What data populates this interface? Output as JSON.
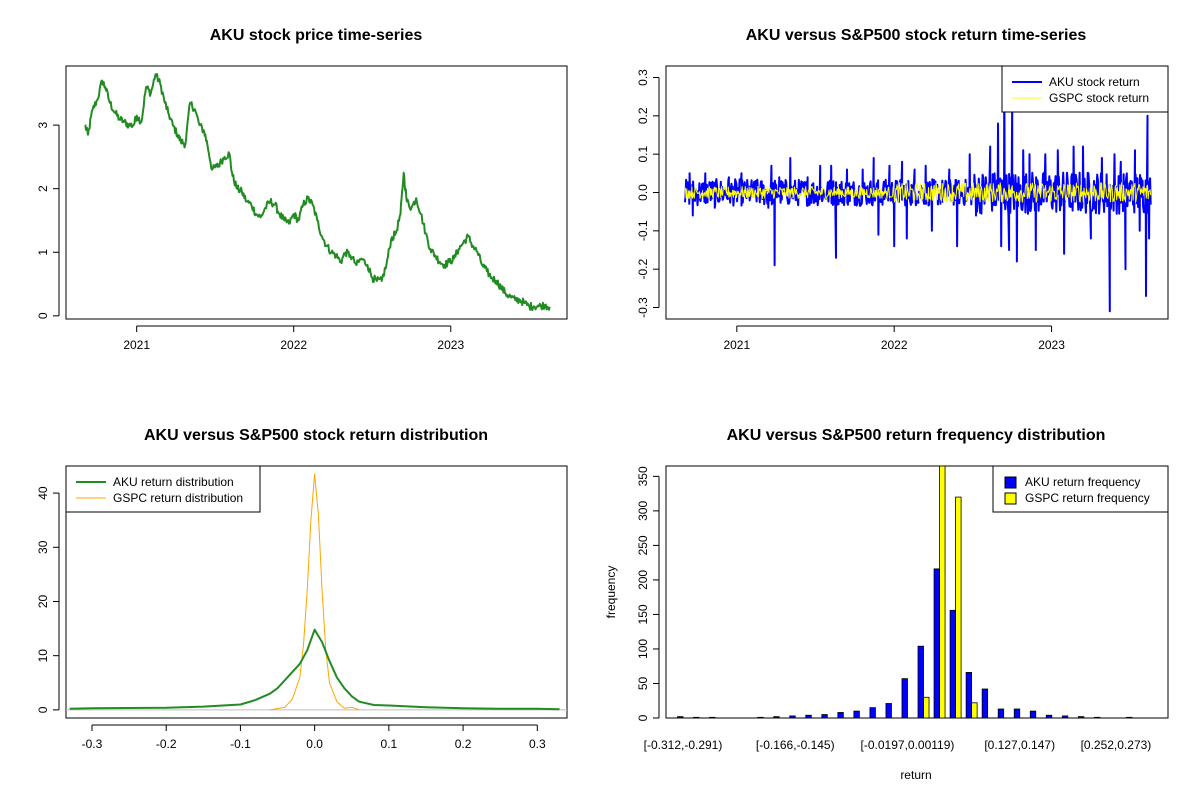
{
  "colors": {
    "green": "#228B22",
    "blue": "#0000FF",
    "yellow": "#FFFF00",
    "orange": "#FFA500",
    "black": "#000000",
    "gray": "#BEBEBE"
  },
  "chart_data": [
    {
      "id": "price",
      "type": "line",
      "title": "AKU stock price time-series",
      "xlabel": "",
      "ylabel": "",
      "xlim": [
        2020.55,
        2023.74
      ],
      "ylim": [
        -0.05,
        3.93
      ],
      "x_ticks": [
        {
          "value": 2021.0,
          "label": "2021"
        },
        {
          "value": 2022.0,
          "label": "2022"
        },
        {
          "value": 2023.0,
          "label": "2023"
        }
      ],
      "y_ticks": [
        {
          "value": 0,
          "label": "0"
        },
        {
          "value": 1,
          "label": "1"
        },
        {
          "value": 2,
          "label": "2"
        },
        {
          "value": 3,
          "label": "3"
        }
      ],
      "series": [
        {
          "name": "AKU stock price",
          "color": "#228B22",
          "x": [
            2020.67,
            2020.69,
            2020.72,
            2020.75,
            2020.78,
            2020.8,
            2020.83,
            2020.86,
            2020.89,
            2020.92,
            2020.95,
            2020.98,
            2021.0,
            2021.03,
            2021.06,
            2021.09,
            2021.12,
            2021.15,
            2021.18,
            2021.2,
            2021.23,
            2021.26,
            2021.28,
            2021.31,
            2021.34,
            2021.37,
            2021.4,
            2021.43,
            2021.45,
            2021.48,
            2021.51,
            2021.53,
            2021.56,
            2021.59,
            2021.61,
            2021.64,
            2021.67,
            2021.7,
            2021.73,
            2021.76,
            2021.79,
            2021.82,
            2021.85,
            2021.88,
            2021.91,
            2021.94,
            2021.97,
            2022.0,
            2022.03,
            2022.06,
            2022.09,
            2022.12,
            2022.15,
            2022.18,
            2022.21,
            2022.24,
            2022.27,
            2022.3,
            2022.33,
            2022.36,
            2022.4,
            2022.43,
            2022.47,
            2022.5,
            2022.53,
            2022.56,
            2022.59,
            2022.62,
            2022.65,
            2022.68,
            2022.7,
            2022.72,
            2022.75,
            2022.78,
            2022.81,
            2022.84,
            2022.87,
            2022.9,
            2022.93,
            2022.96,
            2022.99,
            2023.02,
            2023.05,
            2023.08,
            2023.11,
            2023.14,
            2023.17,
            2023.2,
            2023.23,
            2023.26,
            2023.29,
            2023.32,
            2023.35,
            2023.38,
            2023.41,
            2023.44,
            2023.47,
            2023.5,
            2023.53,
            2023.56,
            2023.6,
            2023.63
          ],
          "values": [
            3.0,
            2.85,
            3.25,
            3.4,
            3.7,
            3.6,
            3.35,
            3.2,
            3.1,
            3.05,
            3.0,
            3.0,
            3.15,
            3.05,
            3.6,
            3.5,
            3.8,
            3.65,
            3.35,
            3.2,
            3.0,
            2.85,
            2.75,
            2.7,
            3.35,
            3.25,
            3.0,
            2.9,
            2.7,
            2.3,
            2.35,
            2.4,
            2.5,
            2.55,
            2.2,
            2.0,
            1.95,
            1.8,
            1.75,
            1.6,
            1.55,
            1.7,
            1.8,
            1.75,
            1.6,
            1.5,
            1.45,
            1.6,
            1.5,
            1.75,
            1.85,
            1.75,
            1.5,
            1.25,
            1.1,
            1.0,
            0.95,
            0.85,
            1.0,
            0.95,
            0.8,
            0.9,
            0.8,
            0.6,
            0.55,
            0.55,
            0.8,
            1.2,
            1.3,
            1.6,
            2.25,
            1.8,
            1.7,
            1.85,
            1.6,
            1.3,
            1.05,
            0.95,
            0.85,
            0.8,
            0.85,
            0.9,
            1.05,
            1.15,
            1.25,
            1.1,
            1.0,
            0.8,
            0.7,
            0.6,
            0.55,
            0.45,
            0.35,
            0.3,
            0.25,
            0.25,
            0.2,
            0.15,
            0.15,
            0.15,
            0.17,
            0.14
          ]
        }
      ]
    },
    {
      "id": "returns_ts",
      "type": "line",
      "title": "AKU versus S&P500 stock return time-series",
      "xlabel": "",
      "ylabel": "",
      "xlim": [
        2020.55,
        2023.74
      ],
      "ylim": [
        -0.33,
        0.33
      ],
      "x_ticks": [
        {
          "value": 2021.0,
          "label": "2021"
        },
        {
          "value": 2022.0,
          "label": "2022"
        },
        {
          "value": 2023.0,
          "label": "2023"
        }
      ],
      "y_ticks": [
        {
          "value": -0.3,
          "label": "-0.3"
        },
        {
          "value": -0.2,
          "label": "-0.2"
        },
        {
          "value": -0.1,
          "label": "-0.1"
        },
        {
          "value": 0.0,
          "label": "0.0"
        },
        {
          "value": 0.1,
          "label": "0.1"
        },
        {
          "value": 0.2,
          "label": "0.2"
        },
        {
          "value": 0.3,
          "label": "0.3"
        }
      ],
      "x_range": [
        2020.67,
        2023.63
      ],
      "series": [
        {
          "name": "AKU stock return",
          "color": "#0000FF",
          "width": 2,
          "noise_amplitude": 0.035,
          "spikes": [
            [
              2020.7,
              0.05
            ],
            [
              2020.72,
              -0.06
            ],
            [
              2020.8,
              0.05
            ],
            [
              2020.86,
              -0.04
            ],
            [
              2020.95,
              0.04
            ],
            [
              2021.03,
              0.05
            ],
            [
              2021.12,
              0.03
            ],
            [
              2021.2,
              -0.04
            ],
            [
              2021.22,
              0.07
            ],
            [
              2021.24,
              -0.19
            ],
            [
              2021.27,
              0.04
            ],
            [
              2021.34,
              0.09
            ],
            [
              2021.45,
              0.04
            ],
            [
              2021.53,
              0.07
            ],
            [
              2021.6,
              0.07
            ],
            [
              2021.63,
              -0.17
            ],
            [
              2021.7,
              0.06
            ],
            [
              2021.8,
              0.06
            ],
            [
              2021.87,
              0.09
            ],
            [
              2021.9,
              -0.11
            ],
            [
              2021.97,
              0.07
            ],
            [
              2022.0,
              -0.14
            ],
            [
              2022.05,
              0.08
            ],
            [
              2022.08,
              -0.12
            ],
            [
              2022.13,
              0.06
            ],
            [
              2022.2,
              0.07
            ],
            [
              2022.24,
              -0.1
            ],
            [
              2022.35,
              0.06
            ],
            [
              2022.4,
              -0.14
            ],
            [
              2022.48,
              0.1
            ],
            [
              2022.52,
              -0.06
            ],
            [
              2022.61,
              0.12
            ],
            [
              2022.66,
              0.18
            ],
            [
              2022.68,
              -0.14
            ],
            [
              2022.7,
              0.32
            ],
            [
              2022.73,
              -0.15
            ],
            [
              2022.75,
              0.23
            ],
            [
              2022.78,
              -0.18
            ],
            [
              2022.82,
              0.11
            ],
            [
              2022.86,
              0.1
            ],
            [
              2022.9,
              -0.15
            ],
            [
              2022.96,
              0.1
            ],
            [
              2023.04,
              0.11
            ],
            [
              2023.08,
              -0.16
            ],
            [
              2023.14,
              0.12
            ],
            [
              2023.2,
              0.12
            ],
            [
              2023.25,
              -0.12
            ],
            [
              2023.32,
              0.09
            ],
            [
              2023.37,
              -0.31
            ],
            [
              2023.4,
              0.1
            ],
            [
              2023.44,
              0.08
            ],
            [
              2023.47,
              -0.2
            ],
            [
              2023.53,
              0.11
            ],
            [
              2023.56,
              -0.1
            ],
            [
              2023.6,
              -0.27
            ],
            [
              2023.61,
              0.2
            ],
            [
              2023.62,
              -0.12
            ]
          ]
        },
        {
          "name": "GSPC stock return",
          "color": "#FFFF00",
          "width": 1,
          "noise_amplitude": 0.02
        }
      ],
      "legend": {
        "position": "top-right",
        "entries": [
          {
            "label": "AKU stock return",
            "color": "#0000FF"
          },
          {
            "label": "GSPC stock return",
            "color": "#FFFF00"
          }
        ]
      }
    },
    {
      "id": "density",
      "type": "line",
      "title": "AKU versus S&P500 stock return distribution",
      "xlabel": "",
      "ylabel": "",
      "xlim": [
        -0.335,
        0.34
      ],
      "ylim": [
        -1.5,
        45.0
      ],
      "x_ticks": [
        {
          "value": -0.3,
          "label": "-0.3"
        },
        {
          "value": -0.2,
          "label": "-0.2"
        },
        {
          "value": -0.1,
          "label": "-0.1"
        },
        {
          "value": 0.0,
          "label": "0.0"
        },
        {
          "value": 0.1,
          "label": "0.1"
        },
        {
          "value": 0.2,
          "label": "0.2"
        },
        {
          "value": 0.3,
          "label": "0.3"
        }
      ],
      "y_ticks": [
        {
          "value": 0,
          "label": "0"
        },
        {
          "value": 10,
          "label": "10"
        },
        {
          "value": 20,
          "label": "20"
        },
        {
          "value": 30,
          "label": "30"
        },
        {
          "value": 40,
          "label": "40"
        }
      ],
      "series": [
        {
          "name": "AKU return distribution",
          "color": "#228B22",
          "x": [
            -0.33,
            -0.3,
            -0.2,
            -0.15,
            -0.1,
            -0.08,
            -0.06,
            -0.05,
            -0.04,
            -0.03,
            -0.02,
            -0.01,
            0.0,
            0.01,
            0.02,
            0.03,
            0.04,
            0.05,
            0.06,
            0.08,
            0.1,
            0.15,
            0.2,
            0.25,
            0.3,
            0.33
          ],
          "values": [
            0.2,
            0.3,
            0.4,
            0.6,
            1.0,
            1.8,
            3.0,
            4.0,
            5.5,
            7.0,
            8.5,
            11.0,
            14.8,
            12.5,
            9.0,
            6.0,
            4.0,
            2.5,
            1.5,
            0.9,
            0.8,
            0.5,
            0.3,
            0.2,
            0.2,
            0.1
          ]
        },
        {
          "name": "GSPC return distribution",
          "color": "#FFA500",
          "x": [
            -0.06,
            -0.04,
            -0.03,
            -0.02,
            -0.015,
            -0.01,
            -0.005,
            0.0,
            0.005,
            0.01,
            0.015,
            0.02,
            0.03,
            0.04,
            0.05,
            0.06
          ],
          "values": [
            0.0,
            0.5,
            2.0,
            6.0,
            12.0,
            22.0,
            35.0,
            43.5,
            36.0,
            22.0,
            11.0,
            5.0,
            1.5,
            0.3,
            0.5,
            0.0
          ]
        }
      ],
      "legend": {
        "position": "top-left",
        "entries": [
          {
            "label": "AKU return distribution",
            "color": "#228B22"
          },
          {
            "label": "GSPC return distribution",
            "color": "#FFA500"
          }
        ]
      }
    },
    {
      "id": "histogram",
      "type": "bar",
      "title": "AKU versus S&P500 return frequency distribution",
      "xlabel": "return",
      "ylabel": "frequency",
      "ylim": [
        0,
        365
      ],
      "y_ticks": [
        {
          "value": 0,
          "label": "0"
        },
        {
          "value": 50,
          "label": "50"
        },
        {
          "value": 100,
          "label": "100"
        },
        {
          "value": 150,
          "label": "150"
        },
        {
          "value": 200,
          "label": "200"
        },
        {
          "value": 250,
          "label": "250"
        },
        {
          "value": 300,
          "label": "300"
        },
        {
          "value": 350,
          "label": "350"
        }
      ],
      "x_tick_labels": [
        {
          "bin": 0,
          "label": "[-0.312,-0.291)"
        },
        {
          "bin": 7,
          "label": "[-0.166,-0.145)"
        },
        {
          "bin": 14,
          "label": "[-0.0197,0.00119)"
        },
        {
          "bin": 21,
          "label": "[0.127,0.147)"
        },
        {
          "bin": 27,
          "label": "[0.252,0.273)"
        }
      ],
      "bins": 30,
      "series": [
        {
          "name": "AKU return frequency",
          "color": "#0000FF",
          "values": [
            2,
            1,
            1,
            0,
            0,
            1,
            2,
            3,
            4,
            5,
            8,
            10,
            15,
            21,
            57,
            104,
            216,
            156,
            66,
            42,
            13,
            13,
            10,
            4,
            3,
            2,
            1,
            0,
            1,
            0
          ]
        },
        {
          "name": "GSPC return frequency",
          "color": "#FFFF00",
          "values": [
            0,
            0,
            0,
            0,
            0,
            0,
            0,
            0,
            0,
            0,
            0,
            0,
            0,
            0,
            0,
            30,
            365,
            320,
            22,
            0,
            0,
            0,
            0,
            0,
            0,
            0,
            0,
            0,
            0,
            0
          ]
        }
      ],
      "legend": {
        "position": "top-right",
        "entries": [
          {
            "label": "AKU return frequency",
            "color": "#0000FF"
          },
          {
            "label": "GSPC return frequency",
            "color": "#FFFF00"
          }
        ]
      }
    }
  ]
}
